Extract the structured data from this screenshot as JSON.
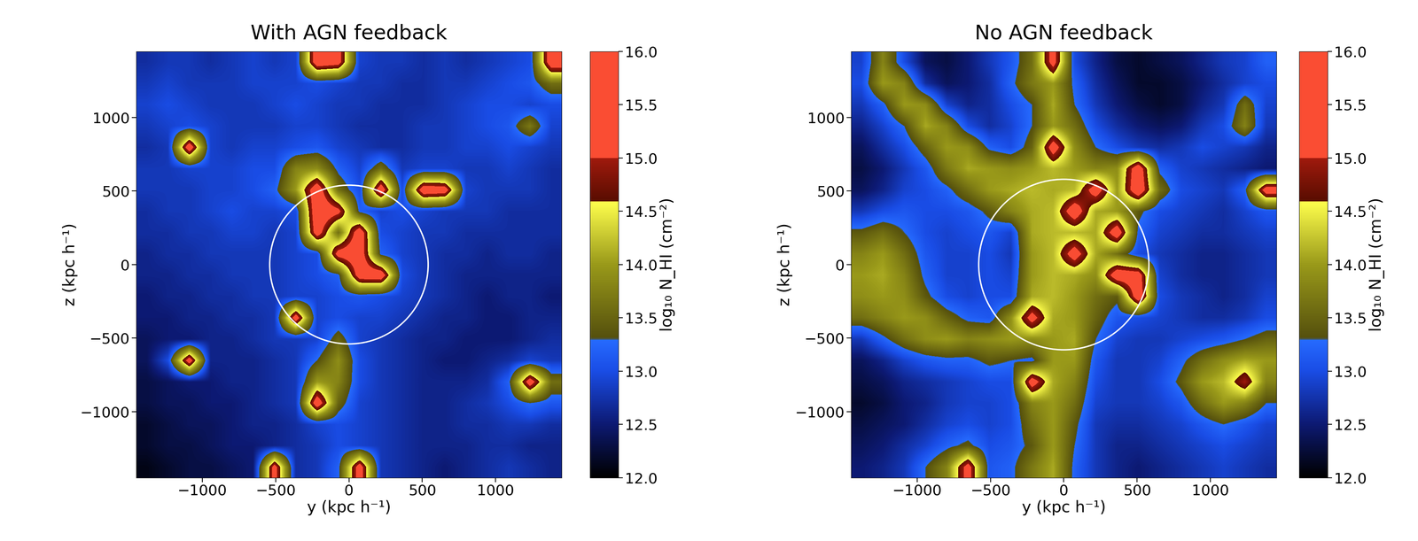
{
  "chart_data": [
    {
      "type": "heatmap",
      "title": "With AGN feedback",
      "x_label": "y (kpc h⁻¹)",
      "y_label": "z (kpc h⁻¹)",
      "xlim": [
        -1450,
        1450
      ],
      "ylim": [
        -1450,
        1450
      ],
      "xticks": [
        {
          "value": -1000,
          "label": "−1000"
        },
        {
          "value": -500,
          "label": "−500"
        },
        0,
        500,
        1000
      ],
      "yticks": [
        {
          "value": -1000,
          "label": "−1000"
        },
        {
          "value": -500,
          "label": "−500"
        },
        0,
        500,
        1000
      ],
      "circle_center": [
        0,
        0
      ],
      "circle_radius": 540,
      "colorbar": {
        "label": "log₁₀ N_HI (cm⁻²)",
        "range": [
          12.0,
          16.0
        ],
        "ticks": [
          {
            "value": 12.0,
            "label": "12.0"
          },
          {
            "value": 12.5,
            "label": "12.5"
          },
          {
            "value": 13.0,
            "label": "13.0"
          },
          {
            "value": 13.5,
            "label": "13.5"
          },
          {
            "value": 14.0,
            "label": "14.0"
          },
          {
            "value": 14.5,
            "label": "14.5"
          },
          {
            "value": 15.0,
            "label": "15.0"
          },
          {
            "value": 15.5,
            "label": "15.5"
          },
          {
            "value": 16.0,
            "label": "16.0"
          }
        ]
      },
      "cells": [
        [
          12.7,
          12.8,
          12.8,
          12.7,
          12.8,
          12.9,
          12.8,
          12.9,
          15.5,
          15.3,
          12.9,
          12.8,
          12.8,
          12.7,
          12.8,
          12.7,
          12.8,
          12.9,
          13.0,
          15.5
        ],
        [
          12.8,
          12.9,
          12.8,
          12.8,
          12.8,
          12.9,
          12.9,
          12.9,
          13.0,
          12.9,
          12.8,
          12.8,
          12.7,
          12.7,
          12.8,
          12.8,
          12.9,
          13.0,
          13.1,
          13.6
        ],
        [
          12.9,
          13.0,
          12.9,
          12.8,
          12.8,
          12.8,
          12.9,
          13.0,
          12.9,
          12.8,
          12.8,
          12.7,
          12.7,
          12.7,
          12.8,
          12.9,
          13.0,
          13.0,
          12.9,
          13.0
        ],
        [
          12.8,
          12.9,
          13.0,
          12.9,
          12.8,
          12.8,
          12.8,
          12.9,
          12.9,
          12.8,
          12.7,
          12.7,
          12.7,
          12.8,
          12.8,
          12.9,
          13.0,
          13.1,
          13.7,
          12.9
        ],
        [
          12.7,
          12.8,
          15.5,
          12.9,
          12.8,
          12.9,
          12.9,
          13.0,
          13.1,
          12.9,
          12.8,
          12.7,
          12.7,
          12.8,
          12.8,
          12.9,
          12.9,
          13.0,
          12.9,
          12.8
        ],
        [
          12.8,
          12.8,
          12.9,
          12.9,
          12.9,
          13.0,
          13.0,
          13.8,
          13.9,
          13.2,
          12.9,
          13.6,
          12.8,
          12.9,
          12.9,
          12.8,
          12.8,
          12.9,
          12.8,
          12.7
        ],
        [
          12.8,
          12.8,
          12.8,
          12.9,
          12.9,
          13.0,
          13.2,
          14.0,
          15.5,
          13.6,
          13.0,
          15.5,
          13.0,
          15.5,
          15.4,
          12.9,
          12.8,
          12.8,
          12.8,
          12.7
        ],
        [
          12.7,
          12.8,
          12.8,
          12.9,
          13.0,
          12.9,
          12.9,
          13.0,
          15.6,
          15.2,
          13.2,
          12.9,
          13.0,
          12.9,
          12.8,
          12.8,
          12.8,
          12.7,
          12.7,
          12.7
        ],
        [
          12.7,
          12.7,
          12.8,
          12.8,
          12.9,
          12.9,
          12.8,
          12.9,
          15.4,
          13.6,
          15.5,
          13.0,
          12.9,
          12.8,
          12.8,
          12.7,
          12.7,
          12.7,
          12.7,
          12.7
        ],
        [
          12.6,
          12.7,
          12.7,
          12.8,
          12.8,
          12.8,
          12.8,
          12.9,
          13.0,
          15.3,
          15.5,
          13.2,
          12.9,
          12.8,
          12.7,
          12.7,
          12.6,
          12.7,
          12.7,
          12.6
        ],
        [
          12.6,
          12.6,
          12.7,
          12.7,
          12.8,
          12.8,
          12.8,
          12.9,
          13.0,
          13.2,
          15.4,
          15.5,
          13.0,
          12.8,
          12.7,
          12.6,
          12.6,
          12.6,
          12.6,
          12.6
        ],
        [
          12.5,
          12.6,
          12.6,
          12.7,
          12.7,
          12.8,
          12.8,
          12.9,
          12.9,
          13.0,
          13.1,
          13.0,
          12.9,
          12.8,
          12.7,
          12.6,
          12.5,
          12.6,
          12.6,
          12.5
        ],
        [
          12.5,
          12.5,
          12.6,
          12.6,
          12.7,
          12.7,
          12.8,
          15.4,
          12.9,
          13.0,
          12.9,
          12.9,
          12.8,
          12.7,
          12.6,
          12.6,
          12.5,
          12.5,
          12.6,
          12.6
        ],
        [
          12.4,
          12.5,
          12.5,
          12.6,
          12.6,
          12.7,
          12.8,
          12.8,
          12.9,
          13.5,
          12.9,
          12.8,
          12.7,
          12.6,
          12.6,
          12.5,
          12.5,
          12.5,
          12.6,
          12.7
        ],
        [
          12.4,
          13.0,
          15.4,
          12.6,
          12.6,
          12.6,
          12.7,
          12.8,
          13.3,
          13.9,
          13.0,
          12.8,
          12.7,
          12.6,
          12.5,
          12.5,
          12.6,
          12.7,
          12.9,
          12.8
        ],
        [
          12.3,
          12.4,
          12.5,
          12.5,
          12.6,
          12.6,
          12.7,
          12.8,
          14.0,
          13.8,
          13.0,
          12.8,
          12.7,
          12.6,
          12.6,
          12.6,
          12.7,
          13.2,
          15.4,
          13.6
        ],
        [
          12.3,
          12.4,
          12.4,
          12.5,
          12.5,
          12.6,
          12.7,
          12.8,
          15.5,
          13.5,
          12.9,
          12.8,
          12.7,
          12.6,
          12.6,
          12.7,
          12.8,
          13.0,
          13.3,
          13.1
        ],
        [
          12.2,
          12.3,
          12.4,
          12.4,
          12.5,
          12.6,
          12.6,
          12.7,
          12.9,
          13.0,
          12.9,
          12.8,
          12.7,
          12.6,
          12.6,
          12.7,
          12.7,
          12.8,
          12.8,
          12.7
        ],
        [
          12.2,
          12.3,
          12.3,
          12.4,
          12.5,
          12.5,
          12.6,
          12.7,
          12.8,
          13.0,
          12.9,
          12.8,
          12.7,
          12.6,
          12.6,
          12.6,
          12.7,
          12.7,
          12.6,
          12.6
        ],
        [
          12.1,
          12.2,
          12.3,
          12.3,
          12.4,
          12.5,
          15.3,
          12.7,
          12.8,
          13.2,
          15.4,
          12.8,
          12.7,
          12.6,
          12.5,
          12.6,
          12.7,
          12.8,
          12.7,
          12.6
        ]
      ]
    },
    {
      "type": "heatmap",
      "title": "No AGN feedback",
      "x_label": "y (kpc h⁻¹)",
      "y_label": "z (kpc h⁻¹)",
      "xlim": [
        -1450,
        1450
      ],
      "ylim": [
        -1450,
        1450
      ],
      "xticks": [
        {
          "value": -1000,
          "label": "−1000"
        },
        {
          "value": -500,
          "label": "−500"
        },
        0,
        500,
        1000
      ],
      "yticks": [
        {
          "value": -1000,
          "label": "−1000"
        },
        {
          "value": -500,
          "label": "−500"
        },
        0,
        500,
        1000
      ],
      "circle_center": [
        0,
        0
      ],
      "circle_radius": 580,
      "colorbar": {
        "label": "log₁₀ N_HI (cm⁻²)",
        "range": [
          12.0,
          16.0
        ],
        "ticks": [
          {
            "value": 12.0,
            "label": "12.0"
          },
          {
            "value": 12.5,
            "label": "12.5"
          },
          {
            "value": 13.0,
            "label": "13.0"
          },
          {
            "value": 13.5,
            "label": "13.5"
          },
          {
            "value": 14.0,
            "label": "14.0"
          },
          {
            "value": 14.5,
            "label": "14.5"
          },
          {
            "value": 15.0,
            "label": "15.0"
          },
          {
            "value": 15.5,
            "label": "15.5"
          },
          {
            "value": 16.0,
            "label": "16.0"
          }
        ]
      },
      "cells": [
        [
          12.9,
          13.8,
          13.0,
          12.4,
          12.3,
          12.5,
          12.8,
          13.1,
          13.6,
          15.3,
          13.0,
          12.6,
          12.3,
          12.2,
          12.3,
          12.4,
          12.6,
          12.8,
          12.9,
          13.2
        ],
        [
          13.0,
          14.0,
          13.8,
          12.7,
          12.4,
          12.5,
          12.7,
          13.2,
          13.7,
          14.0,
          13.2,
          12.7,
          12.4,
          12.2,
          12.2,
          12.3,
          12.5,
          12.7,
          12.9,
          13.0
        ],
        [
          12.8,
          13.2,
          14.0,
          13.9,
          12.9,
          12.6,
          12.7,
          13.0,
          13.3,
          14.1,
          13.3,
          12.8,
          12.5,
          12.3,
          12.2,
          12.3,
          12.6,
          12.8,
          13.6,
          12.9
        ],
        [
          12.6,
          12.9,
          13.3,
          14.1,
          13.8,
          13.0,
          12.7,
          12.9,
          13.3,
          14.0,
          13.6,
          13.0,
          12.7,
          12.5,
          12.4,
          12.5,
          12.8,
          13.0,
          13.8,
          12.8
        ],
        [
          12.4,
          12.7,
          13.0,
          13.5,
          14.0,
          13.9,
          13.2,
          13.0,
          13.5,
          15.4,
          13.9,
          13.3,
          13.0,
          12.8,
          12.7,
          12.8,
          13.0,
          12.9,
          12.8,
          12.6
        ],
        [
          12.3,
          12.5,
          12.8,
          13.1,
          13.7,
          14.1,
          14.0,
          13.9,
          14.0,
          14.2,
          14.0,
          13.8,
          13.9,
          15.5,
          13.2,
          12.9,
          12.8,
          12.7,
          12.6,
          12.5
        ],
        [
          12.4,
          12.6,
          12.9,
          13.0,
          13.2,
          13.6,
          14.0,
          14.1,
          14.2,
          14.1,
          14.2,
          15.4,
          14.0,
          15.6,
          13.6,
          13.0,
          12.9,
          12.8,
          13.2,
          15.4
        ],
        [
          12.8,
          13.0,
          13.1,
          13.0,
          13.0,
          13.1,
          13.4,
          13.8,
          14.1,
          14.2,
          15.5,
          14.1,
          14.0,
          13.4,
          13.0,
          12.9,
          12.8,
          12.7,
          12.9,
          13.1
        ],
        [
          13.4,
          13.6,
          13.3,
          13.0,
          12.9,
          13.0,
          13.1,
          12.9,
          14.1,
          14.2,
          14.2,
          14.1,
          15.5,
          13.2,
          12.9,
          12.8,
          12.7,
          12.7,
          12.8,
          12.9
        ],
        [
          13.8,
          14.0,
          13.6,
          13.1,
          12.9,
          12.9,
          13.0,
          12.8,
          14.0,
          14.2,
          15.4,
          14.1,
          13.6,
          13.0,
          12.8,
          12.7,
          12.6,
          12.6,
          12.7,
          12.8
        ],
        [
          14.0,
          14.1,
          13.8,
          13.2,
          12.9,
          12.9,
          13.0,
          12.9,
          14.0,
          14.2,
          14.1,
          13.9,
          15.5,
          15.4,
          12.9,
          12.7,
          12.6,
          12.6,
          12.7,
          12.8
        ],
        [
          13.9,
          14.0,
          13.9,
          13.4,
          13.0,
          12.9,
          13.0,
          13.0,
          14.1,
          14.2,
          14.0,
          13.6,
          13.4,
          15.5,
          13.0,
          12.8,
          12.7,
          12.6,
          12.7,
          12.9
        ],
        [
          13.6,
          13.8,
          14.0,
          13.9,
          13.5,
          13.2,
          13.1,
          13.9,
          15.3,
          14.1,
          14.0,
          13.5,
          13.1,
          13.0,
          12.9,
          12.8,
          12.7,
          12.7,
          12.8,
          13.0
        ],
        [
          12.8,
          13.2,
          13.6,
          13.9,
          14.0,
          13.8,
          13.9,
          14.0,
          13.9,
          14.0,
          14.1,
          13.3,
          12.9,
          12.8,
          12.8,
          12.9,
          13.0,
          13.1,
          13.3,
          13.5
        ],
        [
          12.4,
          12.6,
          12.9,
          13.1,
          13.2,
          13.2,
          13.4,
          13.3,
          13.2,
          14.0,
          14.0,
          13.1,
          12.8,
          12.8,
          12.9,
          13.2,
          13.6,
          13.9,
          14.1,
          14.0
        ],
        [
          12.3,
          12.4,
          12.6,
          12.7,
          12.8,
          12.9,
          13.0,
          13.0,
          15.4,
          14.1,
          13.8,
          13.0,
          12.8,
          12.8,
          13.0,
          13.4,
          14.0,
          14.2,
          15.0,
          13.8
        ],
        [
          12.2,
          12.3,
          12.5,
          12.6,
          12.8,
          12.9,
          12.9,
          13.0,
          13.8,
          14.0,
          13.6,
          12.9,
          12.8,
          12.8,
          12.9,
          13.1,
          13.6,
          14.0,
          13.8,
          13.3
        ],
        [
          12.3,
          12.4,
          12.5,
          12.7,
          12.9,
          13.0,
          12.9,
          13.0,
          13.6,
          14.0,
          13.4,
          12.8,
          12.7,
          12.7,
          12.8,
          12.9,
          13.1,
          13.3,
          13.1,
          12.9
        ],
        [
          12.4,
          12.5,
          12.7,
          12.9,
          13.2,
          13.4,
          13.0,
          13.1,
          13.4,
          14.0,
          13.3,
          12.8,
          12.6,
          12.6,
          12.7,
          12.8,
          12.9,
          13.0,
          12.9,
          12.8
        ],
        [
          12.5,
          12.6,
          12.8,
          13.3,
          13.8,
          15.3,
          13.1,
          13.2,
          13.7,
          14.1,
          13.2,
          12.8,
          12.6,
          12.5,
          12.6,
          12.7,
          12.8,
          12.9,
          12.8,
          12.7
        ]
      ]
    }
  ]
}
